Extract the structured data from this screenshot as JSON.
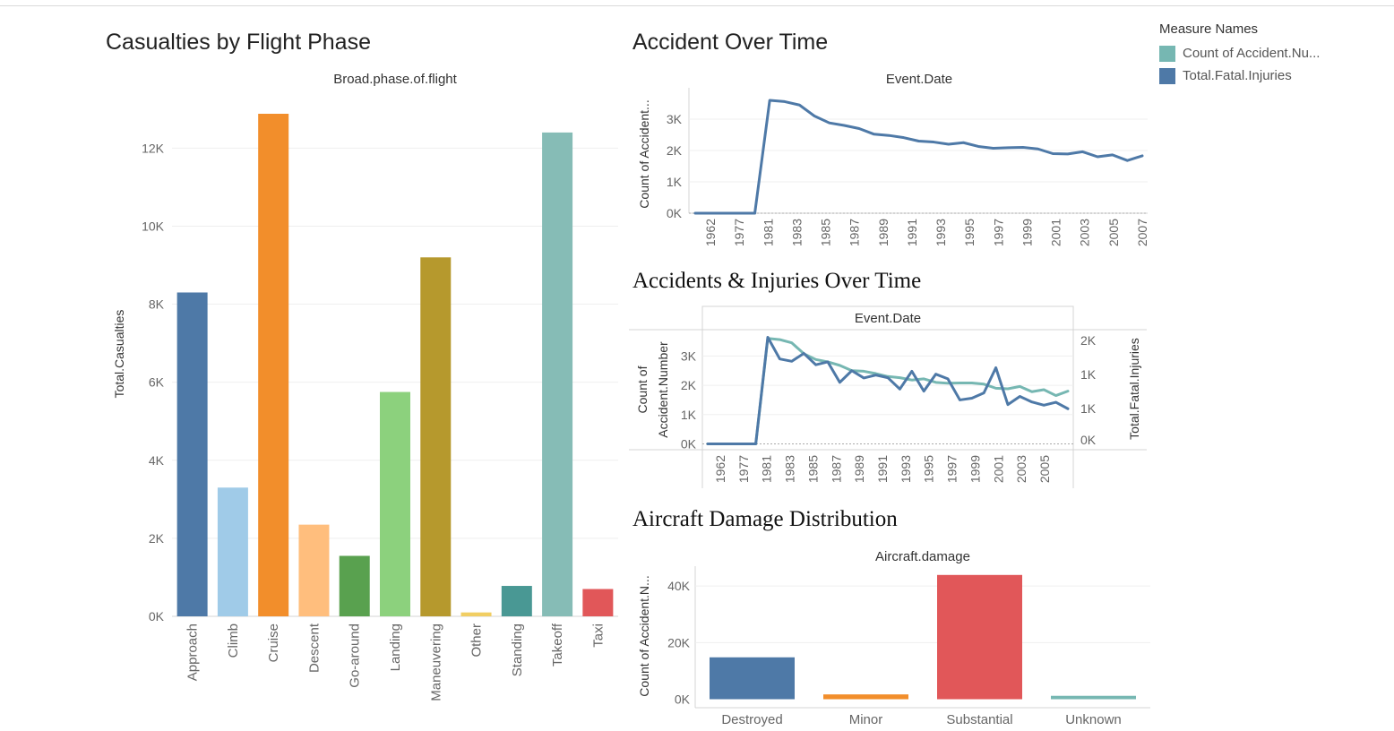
{
  "titles": {
    "phase": "Casualties by Flight Phase",
    "time": "Accident Over Time",
    "injuries": "Accidents & Injuries Over Time",
    "damage": "Aircraft Damage Distribution"
  },
  "legend": {
    "title": "Measure Names",
    "items": [
      {
        "label": "Count of Accident.Nu...",
        "color": "#76b7b2"
      },
      {
        "label": "Total.Fatal.Injuries",
        "color": "#4e79a7"
      }
    ]
  },
  "chart_data": [
    {
      "type": "bar",
      "title": "Casualties by Flight Phase",
      "header": "Broad.phase.of.flight",
      "ylabel": "Total.Casualties",
      "ylim": [
        0,
        13500
      ],
      "yticks": [
        0,
        2000,
        4000,
        6000,
        8000,
        10000,
        12000
      ],
      "ytick_labels": [
        "0K",
        "2K",
        "4K",
        "6K",
        "8K",
        "10K",
        "12K"
      ],
      "categories": [
        "Approach",
        "Climb",
        "Cruise",
        "Descent",
        "Go-around",
        "Landing",
        "Maneuvering",
        "Other",
        "Standing",
        "Takeoff",
        "Taxi"
      ],
      "values": [
        8300,
        3300,
        12880,
        2350,
        1550,
        5750,
        9200,
        100,
        780,
        12400,
        700
      ],
      "colors": [
        "#4e79a7",
        "#a0cbe8",
        "#f28e2b",
        "#ffbe7d",
        "#59a14f",
        "#8cd17d",
        "#b6992d",
        "#f1ce63",
        "#499894",
        "#86bcb6",
        "#e15759"
      ],
      "grid": true
    },
    {
      "type": "line",
      "title": "Accident Over Time",
      "header": "Event.Date",
      "ylabel": "Count of Accident...",
      "ylim": [
        0,
        4000
      ],
      "yticks": [
        0,
        1000,
        2000,
        3000
      ],
      "ytick_labels": [
        "0K",
        "1K",
        "2K",
        "3K"
      ],
      "xtick_labels": [
        "1962",
        "1977",
        "1981",
        "1983",
        "1985",
        "1987",
        "1989",
        "1991",
        "1993",
        "1995",
        "1997",
        "1999",
        "2001",
        "2003",
        "2005",
        "2007"
      ],
      "series": [
        {
          "values": [
            0,
            0,
            0,
            0,
            0,
            3600,
            3560,
            3450,
            3100,
            2880,
            2800,
            2700,
            2520,
            2480,
            2410,
            2300,
            2270,
            2200,
            2250,
            2130,
            2070,
            2090,
            2100,
            2050,
            1900,
            1890,
            1960,
            1800,
            1860,
            1680,
            1830
          ],
          "color": "#4e79a7"
        }
      ]
    },
    {
      "type": "line",
      "title": "Accidents & Injuries Over Time",
      "header": "Event.Date",
      "ylabel": "Count of Accident.Number",
      "y2label": "Total.Fatal.Injuries",
      "ylim": [
        -200,
        3900
      ],
      "yticks": [
        0,
        1000,
        2000,
        3000
      ],
      "ytick_labels": [
        "0K",
        "1K",
        "2K",
        "3K"
      ],
      "y2tick_labels": [
        "0K",
        "1K",
        "1K",
        "2K"
      ],
      "xtick_labels": [
        "1962",
        "1977",
        "1981",
        "1983",
        "1985",
        "1987",
        "1989",
        "1991",
        "1993",
        "1995",
        "1997",
        "1999",
        "2001",
        "2003",
        "2005"
      ],
      "series": [
        {
          "name": "Count of Accident.Nu...",
          "color": "#76b7b2",
          "values": [
            0,
            0,
            0,
            0,
            0,
            3600,
            3560,
            3450,
            3080,
            2880,
            2800,
            2680,
            2500,
            2480,
            2400,
            2300,
            2260,
            2180,
            2220,
            2100,
            2070,
            2080,
            2080,
            2040,
            1900,
            1880,
            1960,
            1780,
            1850,
            1650,
            1800
          ]
        },
        {
          "name": "Total.Fatal.Injuries",
          "color": "#4e79a7",
          "values": [
            0,
            0,
            0,
            0,
            0,
            3640,
            2900,
            2820,
            3090,
            2700,
            2800,
            2100,
            2500,
            2250,
            2350,
            2260,
            1870,
            2480,
            1800,
            2380,
            2220,
            1500,
            1560,
            1740,
            2600,
            1340,
            1620,
            1430,
            1320,
            1420,
            1200
          ]
        }
      ]
    },
    {
      "type": "bar",
      "title": "Aircraft Damage Distribution",
      "header": "Aircraft.damage",
      "ylabel": "Count of Accident.N...",
      "ylim": [
        -3000,
        47000
      ],
      "yticks": [
        0,
        20000,
        40000
      ],
      "ytick_labels": [
        "0K",
        "20K",
        "40K"
      ],
      "categories": [
        "Destroyed",
        "Minor",
        "Substantial",
        "Unknown"
      ],
      "values": [
        14800,
        1700,
        43900,
        1200
      ],
      "colors": [
        "#4e79a7",
        "#f28e2b",
        "#e15759",
        "#76b7b2"
      ]
    }
  ]
}
